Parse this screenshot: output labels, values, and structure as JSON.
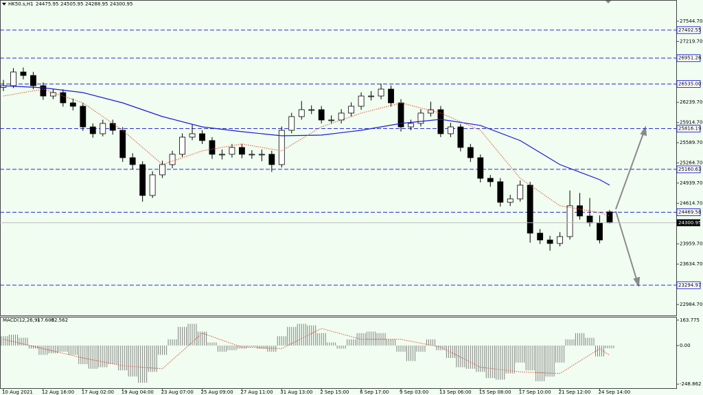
{
  "chart_data": [
    {
      "type": "candlestick",
      "title": "HK50.s,H1",
      "categories": [
        "10 Aug 2021",
        null,
        null,
        null,
        "12 Aug 16:00",
        null,
        null,
        null,
        "17 Aug 02:00",
        null,
        null,
        null,
        "19 Aug 04:00",
        null,
        null,
        null,
        "23 Aug 07:00",
        null,
        null,
        null,
        "25 Aug 09:00",
        null,
        null,
        null,
        "27 Aug 11:00",
        null,
        null,
        null,
        "31 Aug 13:00",
        null,
        null,
        null,
        "2 Sep 15:00",
        null,
        null,
        null,
        "6 Sep 17:00",
        null,
        null,
        null,
        "9 Sep 03:00",
        null,
        null,
        null,
        "13 Sep 06:00",
        null,
        null,
        null,
        "15 Sep 08:00",
        null,
        null,
        null,
        "17 Sep 10:00",
        null,
        null,
        null,
        "21 Sep 12:00",
        null,
        null,
        null,
        "24 Sep 14:00",
        null
      ],
      "open": [
        26480,
        26507,
        26728,
        26672,
        26507,
        26341,
        26396,
        26231,
        26176,
        25844,
        25734,
        25900,
        25789,
        25348,
        25237,
        24740,
        25072,
        25237,
        25403,
        25679,
        25734,
        25624,
        25403,
        25403,
        25513,
        25403,
        25403,
        25403,
        25237,
        25789,
        26010,
        26121,
        26121,
        25955,
        25955,
        26066,
        26176,
        26341,
        26341,
        26452,
        26231,
        25844,
        25900,
        26066,
        26121,
        25734,
        25844,
        25513,
        25348,
        25016,
        24961,
        24630,
        24685,
        24906,
        24133,
        24023,
        23967,
        24078,
        24575,
        24409,
        24299,
        24475.95
      ],
      "high": [
        26600,
        26790,
        26800,
        26730,
        26560,
        26460,
        26450,
        26300,
        26230,
        25900,
        25960,
        25960,
        25840,
        25420,
        25290,
        25130,
        25300,
        25460,
        25740,
        25880,
        25790,
        25680,
        25480,
        25570,
        25570,
        25470,
        25480,
        25460,
        25850,
        26070,
        26260,
        26190,
        26180,
        26030,
        26130,
        26240,
        26400,
        26420,
        26540,
        26510,
        26290,
        25960,
        26130,
        26250,
        26180,
        25910,
        25890,
        25570,
        25400,
        25070,
        25020,
        24750,
        24980,
        24960,
        24200,
        24090,
        24150,
        24820,
        24780,
        24700,
        24420,
        24505.95
      ],
      "low": [
        26420,
        26470,
        26610,
        26450,
        26280,
        26290,
        26170,
        26110,
        25780,
        25670,
        25690,
        25720,
        25280,
        25160,
        24640,
        24700,
        25020,
        25180,
        25360,
        25630,
        25570,
        25330,
        25320,
        25350,
        25340,
        25330,
        25290,
        25120,
        25190,
        25740,
        25960,
        26050,
        25900,
        25890,
        25900,
        26010,
        26120,
        26270,
        26290,
        26170,
        25770,
        25790,
        25850,
        26010,
        25680,
        25680,
        25450,
        25280,
        24950,
        24880,
        24560,
        24570,
        24640,
        23980,
        23960,
        23850,
        23920,
        24030,
        24350,
        24240,
        23970,
        24288.95
      ],
      "close": [
        26507,
        26728,
        26672,
        26507,
        26341,
        26396,
        26231,
        26176,
        25844,
        25734,
        25900,
        25789,
        25348,
        25237,
        24740,
        25072,
        25237,
        25403,
        25679,
        25734,
        25624,
        25403,
        25403,
        25513,
        25403,
        25403,
        25403,
        25237,
        25789,
        26010,
        26121,
        26121,
        25955,
        25955,
        26066,
        26176,
        26341,
        26341,
        26452,
        26231,
        25844,
        25900,
        26066,
        26121,
        25734,
        25844,
        25513,
        25348,
        25016,
        24961,
        24630,
        24685,
        24906,
        24133,
        24023,
        23967,
        24078,
        24575,
        24409,
        24299,
        24023,
        24300.95
      ],
      "up_color": "#ffffff",
      "down_color": "#000000",
      "series": [
        {
          "color": "#1a1ad8",
          "style": "solid",
          "x": [
            0,
            4,
            8,
            12,
            16,
            20,
            24,
            28,
            32,
            36,
            40,
            44,
            48,
            52,
            56,
            60,
            61
          ],
          "values": [
            26507,
            26474,
            26396,
            26231,
            26010,
            25844,
            25767,
            25701,
            25712,
            25789,
            25900,
            25966,
            25867,
            25624,
            25237,
            24994,
            24906
          ]
        },
        {
          "color": "#e0503c",
          "style": "dotted",
          "x": [
            0,
            4,
            8,
            12,
            16,
            20,
            24,
            28,
            32,
            36,
            40,
            44,
            48,
            52,
            56,
            60,
            61
          ],
          "values": [
            26341,
            26452,
            26231,
            25789,
            25237,
            25458,
            25569,
            25458,
            25844,
            26066,
            26231,
            26066,
            25789,
            25016,
            24575,
            24464,
            24409
          ]
        }
      ],
      "levels": [
        27402.55,
        26951.26,
        {
          "value": 26535,
          "label": "26535.00"
        },
        25816.19,
        25160.63,
        24469.58,
        23294.97
      ],
      "level_color": "#2b2bd6",
      "ylim": [
        22808,
        27887
      ],
      "yticks": [
        {
          "value": 27544.7,
          "label": "27544.70"
        },
        {
          "value": 27219.7,
          "label": "27219.70"
        },
        {
          "value": 26239.7,
          "label": "26239.70"
        },
        {
          "value": 25914.7,
          "label": "25914.70"
        },
        {
          "value": 25589.7,
          "label": "25589.70"
        },
        {
          "value": 25264.7,
          "label": "25264.70"
        },
        {
          "value": 24939.7,
          "label": "24939.70"
        },
        {
          "value": 24614.7,
          "label": "24614.70"
        },
        {
          "value": 23959.7,
          "label": "23959.70"
        },
        {
          "value": 23634.7,
          "label": "23634.70"
        },
        {
          "value": 22984.7,
          "label": "22984.70"
        }
      ],
      "grid": false
    },
    {
      "type": "bar",
      "title": "MACD(12,26,9)",
      "series": [
        {
          "color": "#808080",
          "values": [
            60,
            70,
            50,
            -20,
            -60,
            -50,
            -40,
            -60,
            -120,
            -150,
            -140,
            -120,
            -160,
            -200,
            -240,
            -170,
            -60,
            40,
            120,
            140,
            90,
            20,
            -40,
            -30,
            -20,
            -10,
            -20,
            -40,
            60,
            120,
            140,
            130,
            80,
            20,
            -20,
            40,
            80,
            90,
            80,
            40,
            -40,
            -100,
            -40,
            40,
            -30,
            -80,
            -140,
            -150,
            -170,
            -210,
            -220,
            -180,
            -110,
            -160,
            -230,
            -200,
            -110,
            40,
            80,
            50,
            -70,
            -17.603
          ]
        },
        {
          "color": "#e0503c",
          "style": "dotted",
          "x": [
            0,
            4,
            8,
            12,
            16,
            20,
            24,
            28,
            32,
            36,
            40,
            44,
            48,
            52,
            56,
            60,
            61
          ],
          "values": [
            40,
            -20,
            -80,
            -130,
            -150,
            80,
            -10,
            -20,
            110,
            40,
            40,
            -10,
            -140,
            -170,
            -180,
            -20,
            -62.562
          ]
        }
      ],
      "ylim": [
        -279,
        185
      ],
      "yticks": [
        163.775,
        {
          "value": 0,
          "label": "0.00"
        },
        -248.862
      ],
      "grid": false
    }
  ]
}
